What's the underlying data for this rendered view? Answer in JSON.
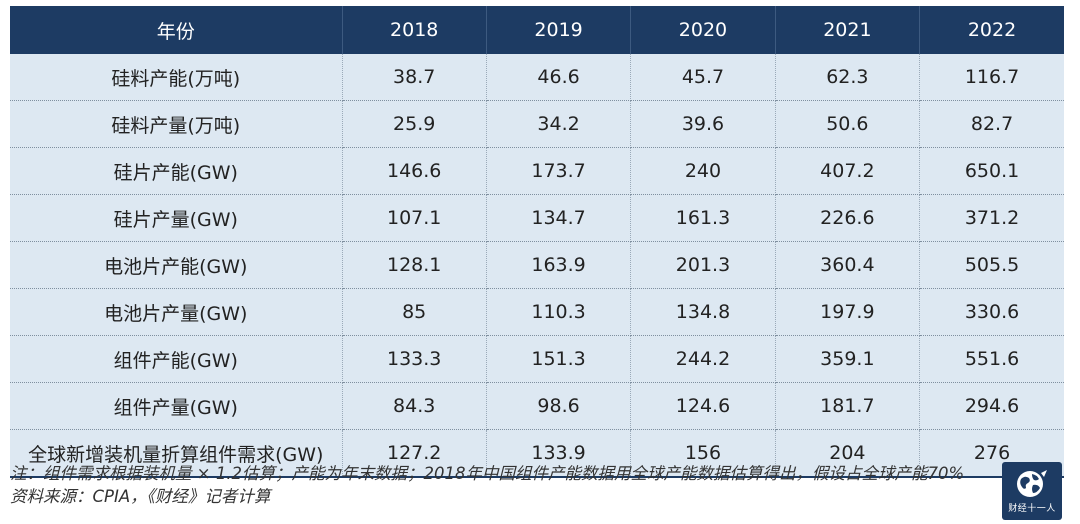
{
  "chart_data": {
    "type": "table",
    "columns": [
      "年份",
      "2018",
      "2019",
      "2020",
      "2021",
      "2022"
    ],
    "rows": [
      {
        "label": "硅料产能(万吨)",
        "values": [
          "38.7",
          "46.6",
          "45.7",
          "62.3",
          "116.7"
        ]
      },
      {
        "label": "硅料产量(万吨)",
        "values": [
          "25.9",
          "34.2",
          "39.6",
          "50.6",
          "82.7"
        ]
      },
      {
        "label": "硅片产能(GW)",
        "values": [
          "146.6",
          "173.7",
          "240",
          "407.2",
          "650.1"
        ]
      },
      {
        "label": "硅片产量(GW)",
        "values": [
          "107.1",
          "134.7",
          "161.3",
          "226.6",
          "371.2"
        ]
      },
      {
        "label": "电池片产能(GW)",
        "values": [
          "128.1",
          "163.9",
          "201.3",
          "360.4",
          "505.5"
        ]
      },
      {
        "label": "电池片产量(GW)",
        "values": [
          "85",
          "110.3",
          "134.8",
          "197.9",
          "330.6"
        ]
      },
      {
        "label": "组件产能(GW)",
        "values": [
          "133.3",
          "151.3",
          "244.2",
          "359.1",
          "551.6"
        ]
      },
      {
        "label": "组件产量(GW)",
        "values": [
          "84.3",
          "98.6",
          "124.6",
          "181.7",
          "294.6"
        ]
      },
      {
        "label": "全球新增装机量折算组件需求(GW)",
        "values": [
          "127.2",
          "133.9",
          "156",
          "204",
          "276"
        ]
      }
    ]
  },
  "notes": {
    "note": "注：组件需求根据装机量 × 1.2估算；产能为年末数据；2018年中国组件产能数据用全球产能数据估算得出，假设占全球产能70%",
    "source": "资料来源：CPIA，《财经》记者计算"
  },
  "logo": {
    "text": "财经十一人",
    "icon": "globe-icon"
  },
  "colors": {
    "header_bg": "#1d3b63",
    "row_bg": "#dde8f2"
  }
}
